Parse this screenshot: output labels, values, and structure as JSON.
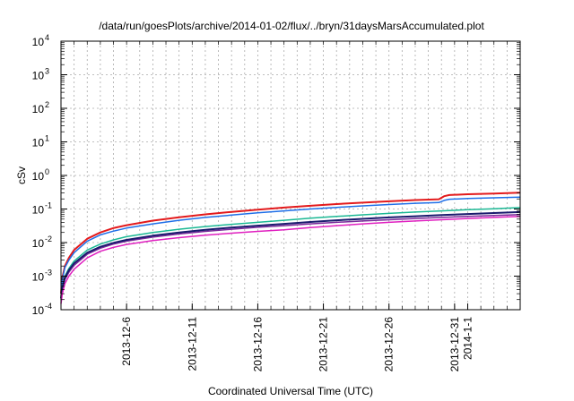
{
  "chart_data": {
    "type": "line",
    "title": "/data/run/goesPlots/archive/2014-01-02/flux/../bryn/31daysMarsAccumulated.plot",
    "xlabel": "Coordinated Universal Time (UTC)",
    "ylabel": "cSv",
    "yscale": "log",
    "ylim": [
      0.0001,
      10000
    ],
    "xlim_day": [
      1,
      36
    ],
    "grid": true,
    "legend": "none",
    "y_ticks": [
      {
        "value": 0.0001,
        "base": "10",
        "exp": "-4"
      },
      {
        "value": 0.001,
        "base": "10",
        "exp": "-3"
      },
      {
        "value": 0.01,
        "base": "10",
        "exp": "-2"
      },
      {
        "value": 0.1,
        "base": "10",
        "exp": "-1"
      },
      {
        "value": 1,
        "base": "10",
        "exp": "0"
      },
      {
        "value": 10,
        "base": "10",
        "exp": "1"
      },
      {
        "value": 100,
        "base": "10",
        "exp": "2"
      },
      {
        "value": 1000,
        "base": "10",
        "exp": "3"
      },
      {
        "value": 10000,
        "base": "10",
        "exp": "4"
      }
    ],
    "x_ticks": [
      {
        "day": 6,
        "label": "2013-12-6"
      },
      {
        "day": 11,
        "label": "2013-12-11"
      },
      {
        "day": 16,
        "label": "2013-12-16"
      },
      {
        "day": 21,
        "label": "2013-12-21"
      },
      {
        "day": 26,
        "label": "2013-12-26"
      },
      {
        "day": 31,
        "label": "2013-12-31"
      },
      {
        "day": 32,
        "label": "2014-1-1"
      }
    ],
    "series": [
      {
        "color": "#e31a1c",
        "width": 2,
        "x": [
          1.0,
          1.1,
          1.3,
          1.6,
          2,
          3,
          4,
          5,
          6,
          8,
          10,
          12,
          14,
          16,
          18,
          20,
          22,
          24,
          26,
          28,
          29.8,
          30.2,
          30.6,
          32,
          34,
          36
        ],
        "y": [
          0.0003,
          0.0009,
          0.002,
          0.0035,
          0.006,
          0.013,
          0.02,
          0.027,
          0.033,
          0.045,
          0.057,
          0.069,
          0.082,
          0.095,
          0.11,
          0.125,
          0.14,
          0.155,
          0.17,
          0.185,
          0.195,
          0.24,
          0.26,
          0.275,
          0.29,
          0.305
        ]
      },
      {
        "color": "#1f6fe8",
        "width": 1.5,
        "x": [
          1.0,
          1.1,
          1.3,
          1.6,
          2,
          3,
          4,
          5,
          6,
          8,
          10,
          12,
          14,
          16,
          18,
          20,
          22,
          24,
          26,
          28,
          29.8,
          30.2,
          30.6,
          32,
          34,
          36
        ],
        "y": [
          0.0003,
          0.0008,
          0.0018,
          0.003,
          0.005,
          0.011,
          0.017,
          0.022,
          0.027,
          0.036,
          0.046,
          0.056,
          0.066,
          0.077,
          0.088,
          0.1,
          0.112,
          0.124,
          0.136,
          0.148,
          0.156,
          0.18,
          0.195,
          0.205,
          0.215,
          0.225
        ]
      },
      {
        "color": "#1bb894",
        "width": 1.5,
        "x": [
          1.0,
          1.1,
          1.3,
          1.6,
          2,
          3,
          4,
          5,
          6,
          8,
          10,
          12,
          14,
          16,
          18,
          20,
          22,
          24,
          26,
          28,
          30,
          32,
          34,
          36
        ],
        "y": [
          0.00025,
          0.0005,
          0.001,
          0.0017,
          0.0028,
          0.006,
          0.009,
          0.012,
          0.015,
          0.02,
          0.025,
          0.03,
          0.035,
          0.04,
          0.046,
          0.053,
          0.06,
          0.067,
          0.074,
          0.081,
          0.088,
          0.095,
          0.102,
          0.11
        ]
      },
      {
        "color": "#7a2a9a",
        "width": 1.5,
        "x": [
          1.0,
          1.1,
          1.3,
          1.6,
          2,
          3,
          4,
          5,
          6,
          8,
          10,
          12,
          14,
          16,
          18,
          20,
          22,
          24,
          26,
          28,
          30,
          32,
          34,
          36
        ],
        "y": [
          0.0002,
          0.0004,
          0.0008,
          0.0013,
          0.0021,
          0.0045,
          0.0068,
          0.009,
          0.011,
          0.0145,
          0.018,
          0.0215,
          0.025,
          0.0285,
          0.032,
          0.036,
          0.04,
          0.044,
          0.048,
          0.052,
          0.056,
          0.06,
          0.064,
          0.068
        ]
      },
      {
        "color": "#1a1a6e",
        "width": 2,
        "x": [
          1.0,
          1.1,
          1.3,
          1.6,
          2,
          3,
          4,
          5,
          6,
          8,
          10,
          12,
          14,
          16,
          18,
          20,
          22,
          24,
          26,
          28,
          30,
          32,
          34,
          36
        ],
        "y": [
          0.00022,
          0.00045,
          0.0009,
          0.0015,
          0.0024,
          0.005,
          0.0075,
          0.0098,
          0.012,
          0.016,
          0.02,
          0.024,
          0.028,
          0.032,
          0.036,
          0.041,
          0.046,
          0.051,
          0.056,
          0.061,
          0.066,
          0.071,
          0.076,
          0.081
        ]
      },
      {
        "color": "#e020c0",
        "width": 1.5,
        "x": [
          1.0,
          1.1,
          1.3,
          1.6,
          2,
          3,
          4,
          5,
          6,
          8,
          10,
          12,
          14,
          16,
          18,
          20,
          22,
          24,
          26,
          28,
          30,
          32,
          34,
          36
        ],
        "y": [
          0.00015,
          0.0003,
          0.0006,
          0.001,
          0.0016,
          0.0035,
          0.0055,
          0.0072,
          0.0088,
          0.0115,
          0.014,
          0.0165,
          0.019,
          0.0215,
          0.024,
          0.028,
          0.032,
          0.036,
          0.04,
          0.044,
          0.048,
          0.052,
          0.056,
          0.06
        ]
      }
    ]
  }
}
